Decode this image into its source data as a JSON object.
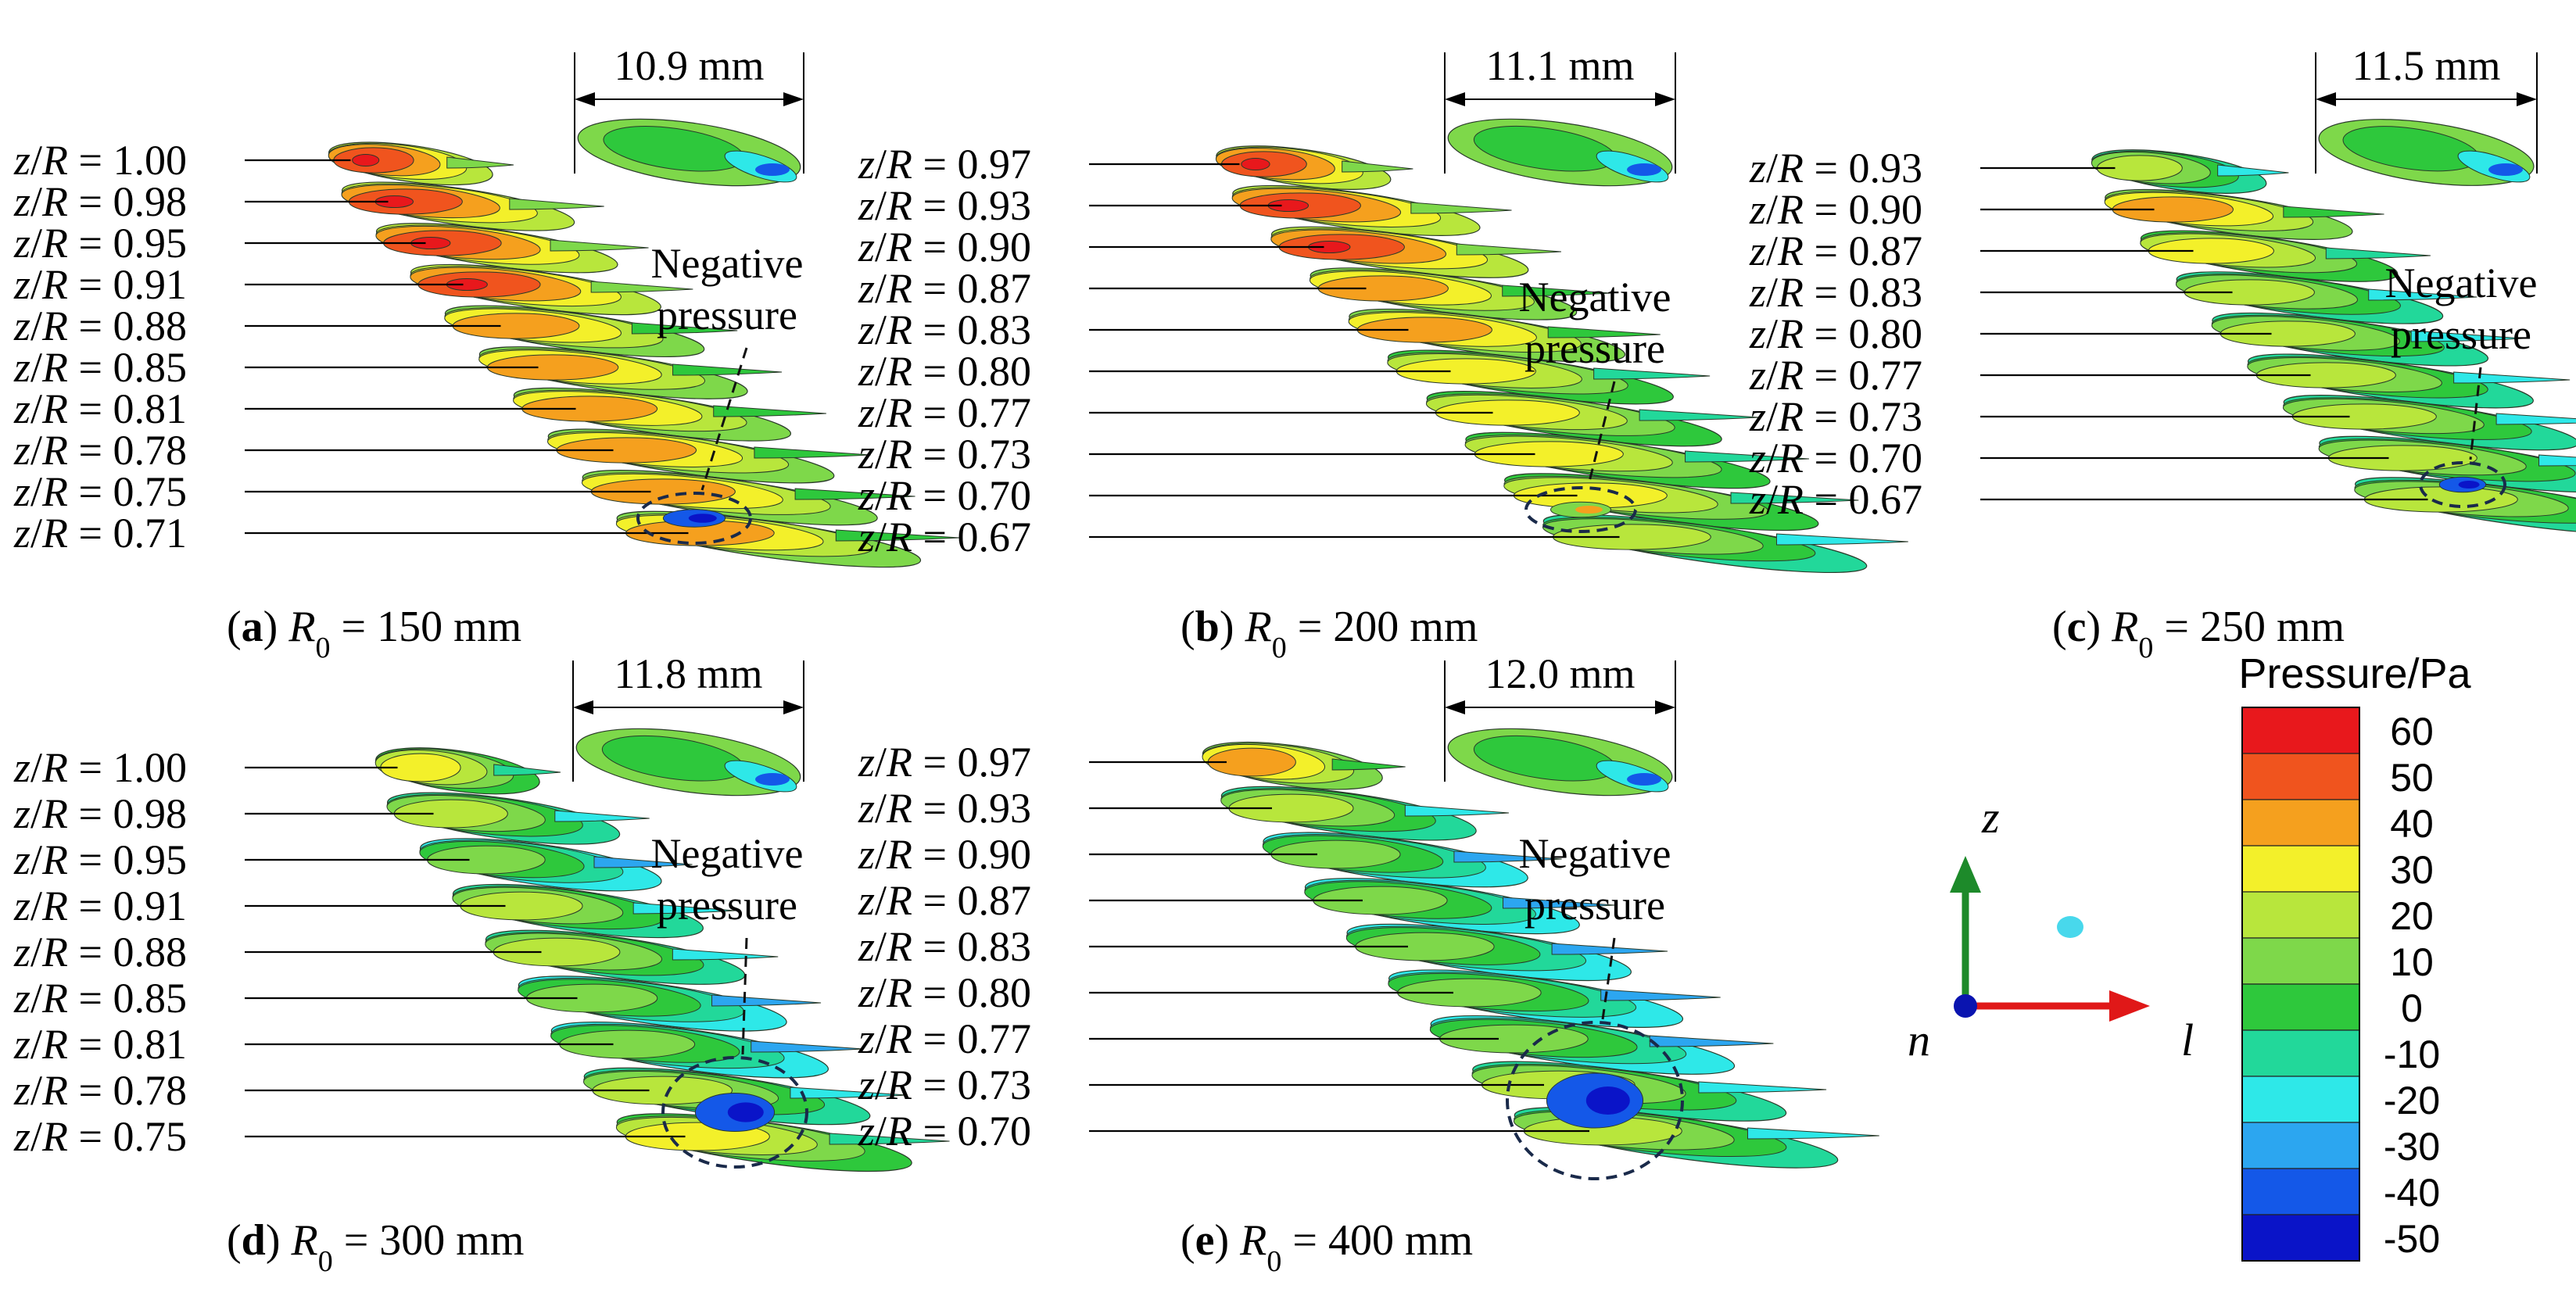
{
  "colors": {
    "red": "#e8181c",
    "orange_red": "#f0541e",
    "orange": "#f5a01e",
    "yellow": "#f3f02a",
    "yellow_green": "#b8e63c",
    "light_green": "#7ed84a",
    "green": "#2ec83c",
    "teal_green": "#22d89a",
    "cyan": "#2ee8e8",
    "light_blue": "#2ca6f0",
    "blue": "#1458e8",
    "dark_blue": "#0a14c8",
    "axis_z": "#1d8a2a",
    "axis_l": "#e01818",
    "axis_n": "#0a14b0",
    "point": "#48d8ec",
    "dashed": "#1a2a4a"
  },
  "panels": [
    {
      "id": "a",
      "letter": "a",
      "r0": "150 mm",
      "width": "10.9 mm",
      "negative": [
        "Negative",
        "pressure"
      ],
      "labels": [
        "1.00",
        "0.98",
        "0.95",
        "0.91",
        "0.88",
        "0.85",
        "0.81",
        "0.78",
        "0.75",
        "0.71"
      ],
      "peak": [
        1,
        1,
        1,
        1,
        2,
        2,
        2,
        2,
        2,
        2
      ]
    },
    {
      "id": "b",
      "letter": "b",
      "r0": "200 mm",
      "width": "11.1 mm",
      "negative": [
        "Negative",
        "pressure"
      ],
      "labels": [
        "0.97",
        "0.93",
        "0.90",
        "0.87",
        "0.83",
        "0.80",
        "0.77",
        "0.73",
        "0.70",
        "0.67"
      ],
      "peak": [
        1,
        1,
        1,
        2,
        2,
        3,
        3,
        3,
        3,
        4
      ]
    },
    {
      "id": "c",
      "letter": "c",
      "r0": "250 mm",
      "width": "11.5 mm",
      "negative": [
        "Negative",
        "pressure"
      ],
      "labels": [
        "0.93",
        "0.90",
        "0.87",
        "0.83",
        "0.80",
        "0.77",
        "0.73",
        "0.70",
        "0.67"
      ],
      "peak": [
        4,
        2,
        3,
        4,
        4,
        4,
        4,
        4,
        4
      ]
    },
    {
      "id": "d",
      "letter": "d",
      "r0": "300 mm",
      "width": "11.8 mm",
      "negative": [
        "Negative",
        "pressure"
      ],
      "labels": [
        "1.00",
        "0.98",
        "0.95",
        "0.91",
        "0.88",
        "0.85",
        "0.81",
        "0.78",
        "0.75"
      ],
      "peak": [
        3,
        4,
        5,
        4,
        4,
        5,
        5,
        4,
        3
      ]
    },
    {
      "id": "e",
      "letter": "e",
      "r0": "400 mm",
      "width": "12.0 mm",
      "negative": [
        "Negative",
        "pressure"
      ],
      "labels": [
        "0.97",
        "0.93",
        "0.90",
        "0.87",
        "0.83",
        "0.80",
        "0.77",
        "0.73",
        "0.70"
      ],
      "peak": [
        2,
        4,
        5,
        5,
        5,
        5,
        5,
        4,
        4
      ]
    }
  ],
  "ratio_label": "z/R",
  "r0_symbol": "R",
  "r0_sub": "0",
  "colorbar": {
    "title": "Pressure/Pa",
    "ticks": [
      "60",
      "50",
      "40",
      "30",
      "20",
      "10",
      "0",
      "-10",
      "-20",
      "-30",
      "-40",
      "-50"
    ],
    "colors": [
      "#e8181c",
      "#f0541e",
      "#f5a01e",
      "#f3f02a",
      "#b8e63c",
      "#7ed84a",
      "#2ec83c",
      "#22d89a",
      "#2ee8e8",
      "#2ca6f0",
      "#1458e8",
      "#0a14c8"
    ]
  },
  "axes": {
    "z": "z",
    "l": "l",
    "n": "n"
  }
}
